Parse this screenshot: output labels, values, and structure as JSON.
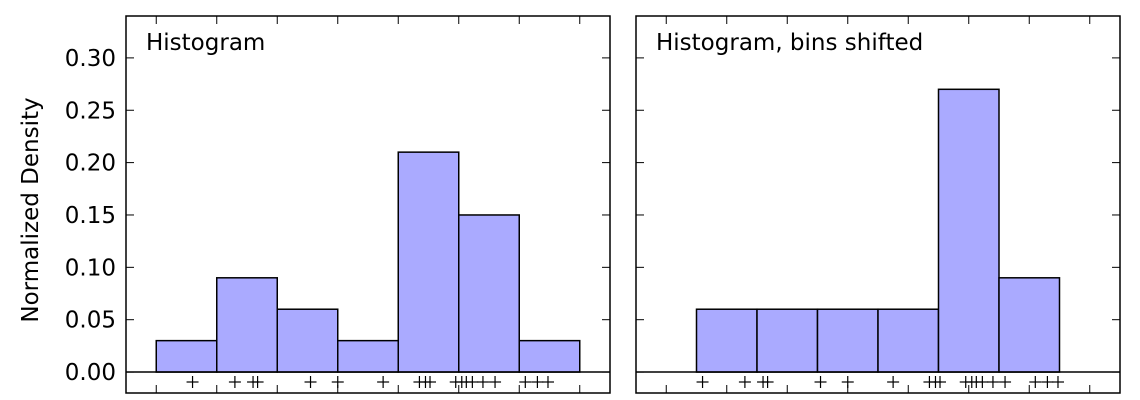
{
  "ylabel": "Normalized Density",
  "y_ticks": [
    "0.00",
    "0.05",
    "0.10",
    "0.15",
    "0.20",
    "0.25",
    "0.30"
  ],
  "chart_data": [
    {
      "type": "bar",
      "title": "Histogram",
      "xlabel": "",
      "ylabel": "Normalized Density",
      "ylim": [
        -0.02,
        0.34
      ],
      "grid": false,
      "bar_color": "#aaaaff",
      "edge_color": "#000000",
      "bin_edges": [
        -4,
        -2,
        0,
        2,
        4,
        6,
        8,
        10
      ],
      "values": [
        0.03,
        0.09,
        0.06,
        0.03,
        0.21,
        0.15,
        0.03
      ],
      "rug_points": [
        -2.8,
        -1.4,
        -0.8,
        -0.65,
        1.1,
        2.0,
        3.5,
        4.7,
        4.9,
        5.05,
        5.9,
        6.1,
        6.25,
        6.45,
        6.8,
        7.2,
        8.2,
        8.6,
        8.95
      ]
    },
    {
      "type": "bar",
      "title": "Histogram, bins shifted",
      "xlabel": "",
      "ylabel": "",
      "ylim": [
        -0.02,
        0.34
      ],
      "grid": false,
      "bar_color": "#aaaaff",
      "edge_color": "#000000",
      "bin_edges": [
        -3,
        -1,
        1,
        3,
        5,
        7,
        9
      ],
      "values": [
        0.06,
        0.06,
        0.06,
        0.06,
        0.27,
        0.09
      ],
      "rug_points": [
        -2.8,
        -1.4,
        -0.8,
        -0.65,
        1.1,
        2.0,
        3.5,
        4.7,
        4.9,
        5.05,
        5.9,
        6.1,
        6.25,
        6.45,
        6.8,
        7.2,
        8.2,
        8.6,
        8.95
      ]
    }
  ]
}
